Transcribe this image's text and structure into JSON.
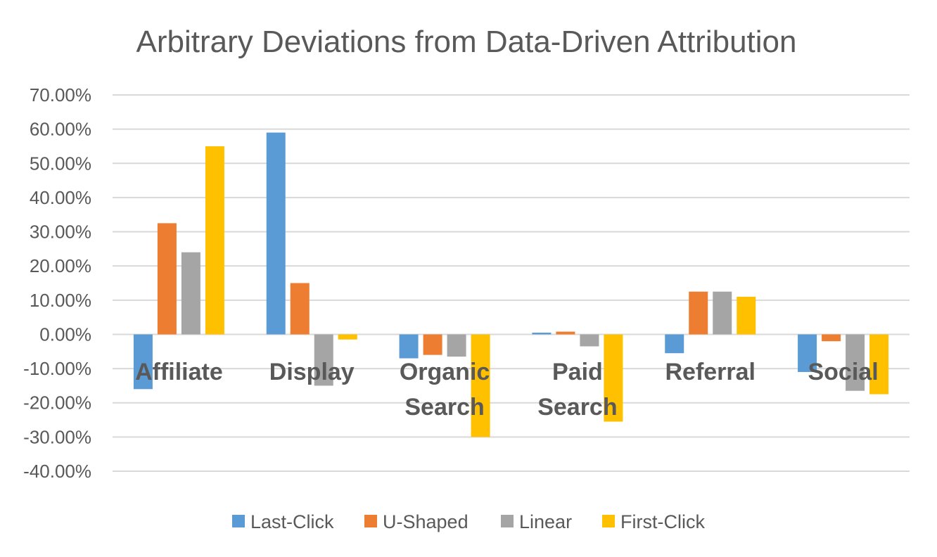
{
  "chart_data": {
    "type": "bar",
    "title": "Arbitrary Deviations from Data-Driven Attribution",
    "xlabel": "",
    "ylabel": "",
    "ylim": [
      -0.4,
      0.7
    ],
    "ytick_values": [
      0.7,
      0.6,
      0.5,
      0.4,
      0.3,
      0.2,
      0.1,
      0.0,
      -0.1,
      -0.2,
      -0.3,
      -0.4
    ],
    "ytick_labels": [
      "70.00%",
      "60.00%",
      "50.00%",
      "40.00%",
      "30.00%",
      "20.00%",
      "10.00%",
      "0.00%",
      "-10.00%",
      "-20.00%",
      "-30.00%",
      "-40.00%"
    ],
    "categories": [
      [
        "Affiliate"
      ],
      [
        "Display"
      ],
      [
        "Organic",
        "Search"
      ],
      [
        "Paid",
        "Search"
      ],
      [
        "Referral"
      ],
      [
        "Social"
      ]
    ],
    "series": [
      {
        "name": "Last-Click",
        "color": "#5b9bd5",
        "values": [
          -0.16,
          0.59,
          -0.07,
          0.005,
          -0.055,
          -0.11
        ]
      },
      {
        "name": "U-Shaped",
        "color": "#ed7d31",
        "values": [
          0.325,
          0.15,
          -0.06,
          0.008,
          0.125,
          -0.02
        ]
      },
      {
        "name": "Linear",
        "color": "#a5a5a5",
        "values": [
          0.24,
          -0.15,
          -0.065,
          -0.035,
          0.125,
          -0.165
        ]
      },
      {
        "name": "First-Click",
        "color": "#ffc000",
        "values": [
          0.55,
          -0.015,
          -0.3,
          -0.255,
          0.11,
          -0.175
        ]
      }
    ],
    "grid": true,
    "legend_position": "bottom"
  }
}
